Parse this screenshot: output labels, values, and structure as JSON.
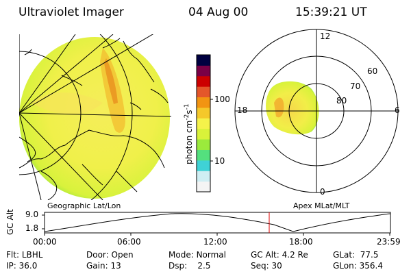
{
  "header": {
    "title": "Ultraviolet Imager",
    "date": "04 Aug 00",
    "time": "15:39:21 UT"
  },
  "colorbar": {
    "unit_prefix": "photon cm",
    "unit_exp1": "-2",
    "unit_mid": "s",
    "unit_exp2": "-1",
    "tick_100": "100",
    "tick_10": "10",
    "colors": [
      "#f4f4f4",
      "#cfeef3",
      "#3fd2d6",
      "#54e07e",
      "#9bea3c",
      "#d9f23a",
      "#f5f24a",
      "#f5c82a",
      "#f29412",
      "#e4562a",
      "#cc0000",
      "#7a0046",
      "#000040"
    ]
  },
  "geo_panel": {
    "label": "Geographic Lat/Lon"
  },
  "polar_panel": {
    "label": "Apex MLat/MLT",
    "mlt_labels": {
      "top": "12",
      "bottom": "0",
      "left": "18",
      "right": "6"
    },
    "lat_labels": [
      "60",
      "70",
      "80"
    ]
  },
  "altitude_plot": {
    "ylabel": "GC Alt",
    "yticks": [
      "9.0",
      "1.8"
    ],
    "xticks": [
      "00:00",
      "06:00",
      "12:00",
      "18:00",
      "23:59"
    ],
    "marker_color": "#dd0000",
    "marker_time": "15:39"
  },
  "info": {
    "row1": [
      {
        "key": "Flt:",
        "value": "LBHL"
      },
      {
        "key": "Door:",
        "value": "Open"
      },
      {
        "key": "Mode:",
        "value": "Normal"
      },
      {
        "key": "GC Alt:",
        "value": "4.2 Re"
      },
      {
        "key": "GLat:",
        "value": "77.5"
      }
    ],
    "row2": [
      {
        "key": "IP:",
        "value": "36.0"
      },
      {
        "key": "Gain:",
        "value": "13"
      },
      {
        "key": "Dsp:",
        "value": "2.5"
      },
      {
        "key": "Seq:",
        "value": "30"
      },
      {
        "key": "GLon:",
        "value": "356.4"
      }
    ]
  }
}
